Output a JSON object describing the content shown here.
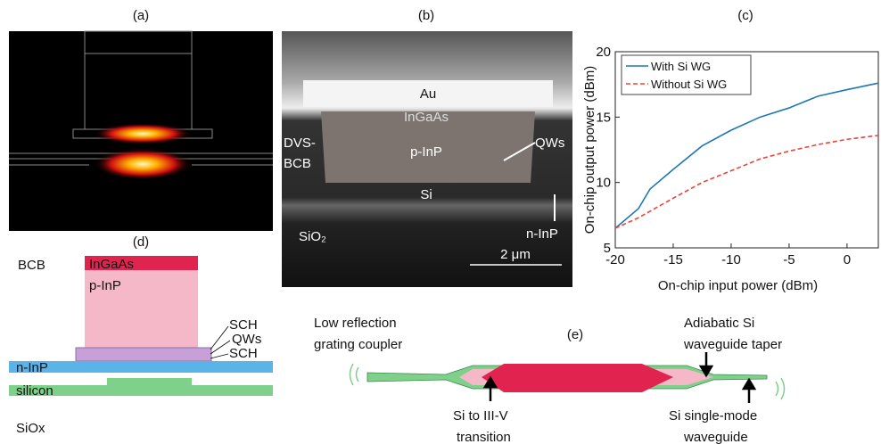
{
  "chart_data": {
    "type": "line",
    "title": "(c)",
    "x_label": "On-chip input power (dBm)",
    "y_label": "On-chip output power (dBm)",
    "x": [
      -20,
      -18,
      -17,
      -15,
      -12.5,
      -10,
      -7.5,
      -5,
      -2.5,
      0,
      2.7
    ],
    "series": [
      {
        "name": "With Si WG",
        "color": "#1f77b4",
        "dash": "solid",
        "values": [
          6.5,
          8,
          9.5,
          11,
          12.8,
          14,
          15,
          15.7,
          16.6,
          17.1,
          17.6
        ]
      },
      {
        "name": "Without Si WG",
        "color": "#e8453c",
        "dash": "dashed",
        "values": [
          6.5,
          7.3,
          7.8,
          8.8,
          10,
          10.9,
          11.8,
          12.4,
          12.9,
          13.3,
          13.6
        ]
      }
    ],
    "xlim": [
      -20,
      2.7
    ],
    "ylim": [
      5,
      20
    ],
    "xticks": [
      -20,
      -15,
      -10,
      -5,
      0
    ],
    "yticks": [
      5,
      10,
      15,
      20
    ],
    "legend": "upper left"
  },
  "panel_a": {
    "label": "(a)"
  },
  "panel_b": {
    "label": "(b)",
    "au": "Au",
    "ingaas": "InGaAs",
    "pinp": "p-InP",
    "qws": "QWs",
    "dvsbcb": [
      "DVS-",
      "BCB"
    ],
    "si": "Si",
    "ninp": "n-InP",
    "sio2": "SiO₂",
    "scale": "2 μm"
  },
  "panel_d": {
    "label": "(d)",
    "bcb": "BCB",
    "ingaas": "InGaAs",
    "pinp": "p-InP",
    "sch1": "SCH",
    "qws": "QWs",
    "sch2": "SCH",
    "ninp": "n-InP",
    "silicon": "silicon",
    "siox": "SiOx"
  },
  "panel_e": {
    "label": "(e)",
    "coupler": [
      "Low reflection",
      "grating coupler"
    ],
    "transition": [
      "Si to III-V",
      "transition"
    ],
    "taper": [
      "Adiabatic Si",
      "waveguide taper"
    ],
    "singlemode": [
      "Si single-mode",
      "waveguide"
    ]
  }
}
